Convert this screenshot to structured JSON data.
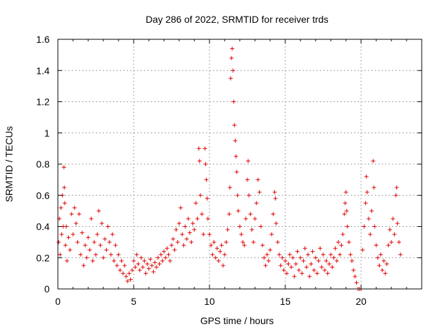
{
  "chart_data": {
    "type": "scatter",
    "title": "Day 286 of 2022, SRMTID for receiver trds",
    "xlabel": "GPS time / hours",
    "ylabel": "SRMTID / TECUs",
    "xlim": [
      0,
      24
    ],
    "ylim": [
      0,
      1.6
    ],
    "xticks": [
      0,
      5,
      10,
      15,
      20
    ],
    "xtick_labels": [
      "0",
      "5",
      "10",
      "15",
      "20"
    ],
    "yticks": [
      0,
      0.2,
      0.4,
      0.6,
      0.8,
      1.0,
      1.2,
      1.4,
      1.6
    ],
    "ytick_labels": [
      "0",
      "0.2",
      "0.4",
      "0.6",
      "0.8",
      "1",
      "1.2",
      "1.4",
      "1.6"
    ],
    "grid": true,
    "marker": "+",
    "marker_color": "#e00000",
    "series": [
      {
        "name": "SRMTID",
        "points": [
          [
            0.05,
            0.3
          ],
          [
            0.1,
            0.45
          ],
          [
            0.15,
            0.22
          ],
          [
            0.2,
            0.52
          ],
          [
            0.25,
            0.35
          ],
          [
            0.3,
            0.6
          ],
          [
            0.35,
            0.4
          ],
          [
            0.4,
            0.78
          ],
          [
            0.42,
            0.65
          ],
          [
            0.45,
            0.55
          ],
          [
            0.5,
            0.28
          ],
          [
            0.55,
            0.4
          ],
          [
            0.6,
            0.18
          ],
          [
            0.7,
            0.33
          ],
          [
            0.8,
            0.25
          ],
          [
            0.9,
            0.48
          ],
          [
            1.0,
            0.35
          ],
          [
            1.1,
            0.52
          ],
          [
            1.2,
            0.42
          ],
          [
            1.3,
            0.3
          ],
          [
            1.4,
            0.48
          ],
          [
            1.5,
            0.22
          ],
          [
            1.6,
            0.36
          ],
          [
            1.7,
            0.15
          ],
          [
            1.8,
            0.28
          ],
          [
            1.9,
            0.2
          ],
          [
            2.0,
            0.33
          ],
          [
            2.1,
            0.25
          ],
          [
            2.2,
            0.45
          ],
          [
            2.3,
            0.18
          ],
          [
            2.4,
            0.3
          ],
          [
            2.5,
            0.22
          ],
          [
            2.6,
            0.35
          ],
          [
            2.7,
            0.5
          ],
          [
            2.8,
            0.28
          ],
          [
            2.9,
            0.42
          ],
          [
            3.0,
            0.2
          ],
          [
            3.1,
            0.32
          ],
          [
            3.2,
            0.25
          ],
          [
            3.3,
            0.4
          ],
          [
            3.4,
            0.3
          ],
          [
            3.5,
            0.22
          ],
          [
            3.6,
            0.35
          ],
          [
            3.7,
            0.18
          ],
          [
            3.8,
            0.28
          ],
          [
            3.9,
            0.15
          ],
          [
            4.0,
            0.22
          ],
          [
            4.1,
            0.12
          ],
          [
            4.2,
            0.18
          ],
          [
            4.3,
            0.1
          ],
          [
            4.4,
            0.15
          ],
          [
            4.5,
            0.08
          ],
          [
            4.6,
            0.05
          ],
          [
            4.7,
            0.1
          ],
          [
            4.8,
            0.06
          ],
          [
            4.9,
            0.12
          ],
          [
            5.0,
            0.18
          ],
          [
            5.1,
            0.14
          ],
          [
            5.2,
            0.22
          ],
          [
            5.3,
            0.16
          ],
          [
            5.4,
            0.12
          ],
          [
            5.5,
            0.2
          ],
          [
            5.6,
            0.14
          ],
          [
            5.7,
            0.18
          ],
          [
            5.8,
            0.1
          ],
          [
            5.9,
            0.16
          ],
          [
            6.0,
            0.13
          ],
          [
            6.1,
            0.19
          ],
          [
            6.2,
            0.15
          ],
          [
            6.3,
            0.11
          ],
          [
            6.4,
            0.17
          ],
          [
            6.5,
            0.14
          ],
          [
            6.6,
            0.2
          ],
          [
            6.7,
            0.16
          ],
          [
            6.8,
            0.22
          ],
          [
            6.9,
            0.18
          ],
          [
            7.0,
            0.24
          ],
          [
            7.1,
            0.2
          ],
          [
            7.2,
            0.26
          ],
          [
            7.3,
            0.22
          ],
          [
            7.4,
            0.18
          ],
          [
            7.5,
            0.28
          ],
          [
            7.6,
            0.32
          ],
          [
            7.7,
            0.25
          ],
          [
            7.8,
            0.38
          ],
          [
            7.9,
            0.3
          ],
          [
            8.0,
            0.42
          ],
          [
            8.1,
            0.52
          ],
          [
            8.2,
            0.35
          ],
          [
            8.3,
            0.28
          ],
          [
            8.4,
            0.4
          ],
          [
            8.5,
            0.32
          ],
          [
            8.6,
            0.45
          ],
          [
            8.7,
            0.36
          ],
          [
            8.8,
            0.3
          ],
          [
            8.9,
            0.42
          ],
          [
            9.0,
            0.38
          ],
          [
            9.1,
            0.55
          ],
          [
            9.2,
            0.45
          ],
          [
            9.3,
            0.9
          ],
          [
            9.35,
            0.82
          ],
          [
            9.4,
            0.6
          ],
          [
            9.5,
            0.48
          ],
          [
            9.6,
            0.35
          ],
          [
            9.7,
            0.9
          ],
          [
            9.75,
            0.8
          ],
          [
            9.8,
            0.7
          ],
          [
            9.85,
            0.58
          ],
          [
            9.9,
            0.45
          ],
          [
            10.0,
            0.35
          ],
          [
            10.1,
            0.28
          ],
          [
            10.2,
            0.22
          ],
          [
            10.3,
            0.3
          ],
          [
            10.4,
            0.2
          ],
          [
            10.5,
            0.26
          ],
          [
            10.6,
            0.18
          ],
          [
            10.7,
            0.24
          ],
          [
            10.8,
            0.28
          ],
          [
            10.9,
            0.15
          ],
          [
            11.0,
            0.22
          ],
          [
            11.1,
            0.3
          ],
          [
            11.2,
            0.38
          ],
          [
            11.3,
            0.48
          ],
          [
            11.35,
            0.65
          ],
          [
            11.4,
            1.35
          ],
          [
            11.45,
            1.48
          ],
          [
            11.5,
            1.54
          ],
          [
            11.55,
            1.4
          ],
          [
            11.6,
            1.2
          ],
          [
            11.65,
            1.05
          ],
          [
            11.7,
            0.95
          ],
          [
            11.75,
            0.85
          ],
          [
            11.8,
            0.75
          ],
          [
            11.85,
            0.6
          ],
          [
            11.9,
            0.5
          ],
          [
            12.0,
            0.4
          ],
          [
            12.1,
            0.35
          ],
          [
            12.2,
            0.3
          ],
          [
            12.3,
            0.28
          ],
          [
            12.4,
            0.45
          ],
          [
            12.5,
            0.7
          ],
          [
            12.55,
            0.82
          ],
          [
            12.6,
            0.6
          ],
          [
            12.7,
            0.48
          ],
          [
            12.8,
            0.38
          ],
          [
            12.9,
            0.3
          ],
          [
            13.0,
            0.45
          ],
          [
            13.1,
            0.55
          ],
          [
            13.2,
            0.7
          ],
          [
            13.3,
            0.62
          ],
          [
            13.4,
            0.4
          ],
          [
            13.5,
            0.28
          ],
          [
            13.6,
            0.2
          ],
          [
            13.7,
            0.15
          ],
          [
            13.8,
            0.22
          ],
          [
            13.9,
            0.18
          ],
          [
            14.0,
            0.25
          ],
          [
            14.1,
            0.35
          ],
          [
            14.2,
            0.48
          ],
          [
            14.3,
            0.62
          ],
          [
            14.35,
            0.58
          ],
          [
            14.4,
            0.42
          ],
          [
            14.5,
            0.3
          ],
          [
            14.6,
            0.22
          ],
          [
            14.7,
            0.15
          ],
          [
            14.8,
            0.2
          ],
          [
            14.9,
            0.12
          ],
          [
            15.0,
            0.18
          ],
          [
            15.1,
            0.1
          ],
          [
            15.2,
            0.16
          ],
          [
            15.3,
            0.22
          ],
          [
            15.4,
            0.14
          ],
          [
            15.5,
            0.2
          ],
          [
            15.6,
            0.08
          ],
          [
            15.7,
            0.16
          ],
          [
            15.8,
            0.24
          ],
          [
            15.9,
            0.12
          ],
          [
            16.0,
            0.2
          ],
          [
            16.1,
            0.1
          ],
          [
            16.2,
            0.18
          ],
          [
            16.3,
            0.26
          ],
          [
            16.4,
            0.14
          ],
          [
            16.5,
            0.22
          ],
          [
            16.6,
            0.08
          ],
          [
            16.7,
            0.16
          ],
          [
            16.8,
            0.24
          ],
          [
            16.9,
            0.12
          ],
          [
            17.0,
            0.2
          ],
          [
            17.1,
            0.1
          ],
          [
            17.2,
            0.18
          ],
          [
            17.3,
            0.26
          ],
          [
            17.4,
            0.14
          ],
          [
            17.5,
            0.22
          ],
          [
            17.6,
            0.12
          ],
          [
            17.7,
            0.18
          ],
          [
            17.8,
            0.1
          ],
          [
            17.9,
            0.16
          ],
          [
            18.0,
            0.22
          ],
          [
            18.1,
            0.14
          ],
          [
            18.2,
            0.2
          ],
          [
            18.3,
            0.26
          ],
          [
            18.4,
            0.18
          ],
          [
            18.5,
            0.3
          ],
          [
            18.6,
            0.22
          ],
          [
            18.7,
            0.28
          ],
          [
            18.8,
            0.35
          ],
          [
            18.9,
            0.48
          ],
          [
            18.95,
            0.55
          ],
          [
            19.0,
            0.62
          ],
          [
            19.05,
            0.5
          ],
          [
            19.1,
            0.4
          ],
          [
            19.2,
            0.3
          ],
          [
            19.3,
            0.22
          ],
          [
            19.4,
            0.18
          ],
          [
            19.5,
            0.12
          ],
          [
            19.6,
            0.08
          ],
          [
            19.7,
            0.04
          ],
          [
            19.8,
            0.0
          ],
          [
            19.9,
            0.0
          ],
          [
            20.0,
            0.0
          ],
          [
            20.1,
            0.25
          ],
          [
            20.2,
            0.4
          ],
          [
            20.3,
            0.55
          ],
          [
            20.35,
            0.72
          ],
          [
            20.4,
            0.62
          ],
          [
            20.5,
            0.45
          ],
          [
            20.6,
            0.35
          ],
          [
            20.7,
            0.5
          ],
          [
            20.8,
            0.82
          ],
          [
            20.85,
            0.65
          ],
          [
            20.9,
            0.4
          ],
          [
            21.0,
            0.28
          ],
          [
            21.1,
            0.2
          ],
          [
            21.2,
            0.15
          ],
          [
            21.3,
            0.22
          ],
          [
            21.4,
            0.12
          ],
          [
            21.5,
            0.18
          ],
          [
            21.6,
            0.1
          ],
          [
            21.7,
            0.16
          ],
          [
            21.8,
            0.28
          ],
          [
            21.9,
            0.38
          ],
          [
            22.0,
            0.3
          ],
          [
            22.1,
            0.45
          ],
          [
            22.2,
            0.35
          ],
          [
            22.3,
            0.6
          ],
          [
            22.35,
            0.65
          ],
          [
            22.4,
            0.42
          ],
          [
            22.5,
            0.3
          ],
          [
            22.6,
            0.22
          ]
        ]
      }
    ]
  }
}
